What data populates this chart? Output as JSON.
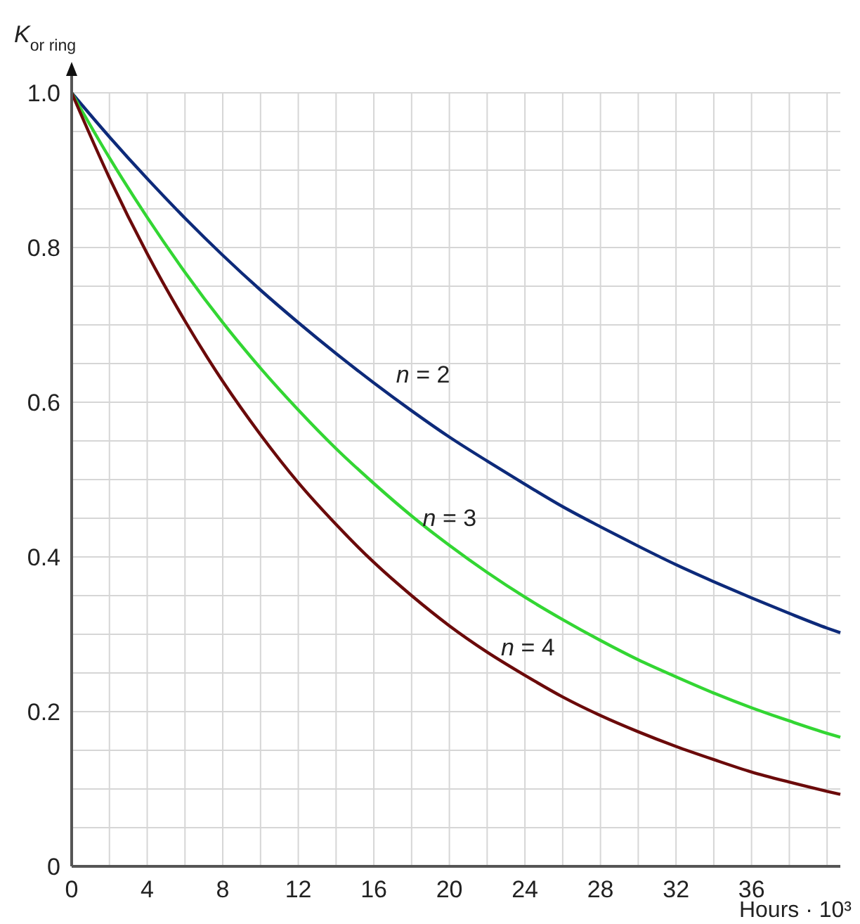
{
  "chart_data": {
    "type": "line",
    "xlabel": "Hours · 10³",
    "ylabel": "K$_{or ring}$",
    "x": [
      0,
      2,
      4,
      6,
      8,
      10,
      12,
      14,
      16,
      18,
      20,
      22,
      24,
      26,
      28,
      30,
      32,
      34,
      36,
      38,
      40,
      40.7
    ],
    "series": [
      {
        "name": "n = 2",
        "color": "#0d2a7a",
        "values": [
          1.0,
          0.943,
          0.889,
          0.838,
          0.79,
          0.745,
          0.703,
          0.663,
          0.625,
          0.589,
          0.555,
          0.524,
          0.494,
          0.465,
          0.439,
          0.414,
          0.39,
          0.368,
          0.347,
          0.327,
          0.308,
          0.302
        ]
      },
      {
        "name": "n = 3",
        "color": "#33d633",
        "values": [
          1.0,
          0.916,
          0.839,
          0.768,
          0.703,
          0.644,
          0.59,
          0.54,
          0.495,
          0.453,
          0.415,
          0.38,
          0.348,
          0.319,
          0.292,
          0.267,
          0.245,
          0.224,
          0.205,
          0.188,
          0.172,
          0.167
        ]
      },
      {
        "name": "n = 4",
        "color": "#6b0a0a",
        "values": [
          1.0,
          0.89,
          0.792,
          0.705,
          0.627,
          0.558,
          0.496,
          0.442,
          0.393,
          0.35,
          0.311,
          0.277,
          0.247,
          0.219,
          0.195,
          0.174,
          0.155,
          0.138,
          0.122,
          0.109,
          0.097,
          0.093
        ]
      }
    ],
    "xlim": [
      0,
      40.7
    ],
    "ylim": [
      0,
      1
    ],
    "xticks": [
      0,
      {
        "value": 2,
        "label": null
      },
      4,
      {
        "value": 6,
        "label": null
      },
      8,
      {
        "value": 10,
        "label": null
      },
      12,
      {
        "value": 14,
        "label": null
      },
      16,
      {
        "value": 18,
        "label": null
      },
      20,
      {
        "value": 22,
        "label": null
      },
      24,
      {
        "value": 26,
        "label": null
      },
      28,
      {
        "value": 30,
        "label": null
      },
      32,
      {
        "value": 34,
        "label": null
      },
      36,
      {
        "value": 38,
        "label": null
      },
      {
        "value": 40,
        "label": null
      }
    ],
    "yticks": [
      0,
      {
        "value": 0.05,
        "label": null
      },
      {
        "value": 0.1,
        "label": null
      },
      {
        "value": 0.15,
        "label": null
      },
      0.2,
      {
        "value": 0.25,
        "label": null
      },
      {
        "value": 0.3,
        "label": null
      },
      {
        "value": 0.35,
        "label": null
      },
      0.4,
      {
        "value": 0.45,
        "label": null
      },
      {
        "value": 0.5,
        "label": null
      },
      {
        "value": 0.55,
        "label": null
      },
      0.6,
      {
        "value": 0.65,
        "label": null
      },
      {
        "value": 0.7,
        "label": null
      },
      {
        "value": 0.75,
        "label": null
      },
      0.8,
      {
        "value": 0.85,
        "label": null
      },
      {
        "value": 0.9,
        "label": null
      },
      {
        "value": 0.95,
        "label": null
      },
      {
        "value": 1,
        "label": "1.0"
      }
    ],
    "grid": true,
    "marker": "none",
    "line_style": "solid"
  }
}
